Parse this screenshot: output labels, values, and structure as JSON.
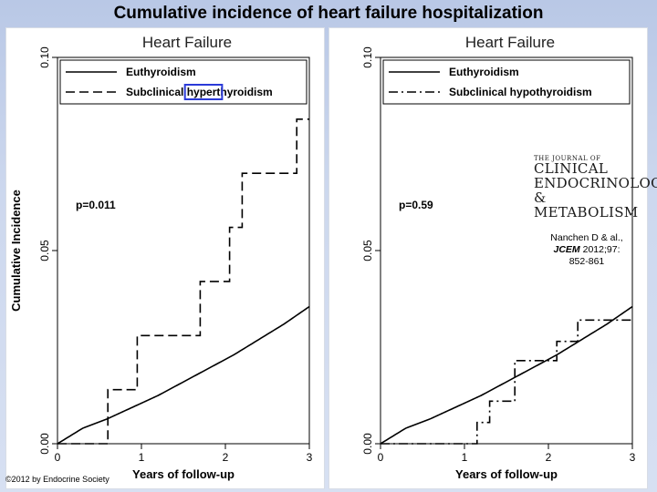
{
  "slide": {
    "title": "Cumulative incidence of heart failure hospitalization",
    "copyright": "©2012 by Endocrine Society"
  },
  "journal": {
    "line1": "THE JOURNAL OF",
    "line2": "CLINICAL",
    "line3": "ENDOCRINOLOGY",
    "line4": "& METABOLISM"
  },
  "citation": {
    "authors": "Nanchen D & al.,",
    "journal": "JCEM",
    "volume": "2012;97:",
    "pages": "852-861"
  },
  "chart_data": [
    {
      "type": "line",
      "title": "Heart Failure",
      "xlabel": "Years of follow-up",
      "ylabel": "Cumulative Incidence",
      "xlim": [
        0,
        3
      ],
      "ylim": [
        0,
        0.1
      ],
      "x_ticks": [
        0,
        1,
        2,
        3
      ],
      "x_tick_labels": [
        "0",
        "1",
        "2",
        "3"
      ],
      "y_ticks": [
        0,
        0.05,
        0.1
      ],
      "y_tick_labels": [
        "0.00",
        "0.05",
        "0.10"
      ],
      "p_value": "p=0.011",
      "legend_position": "top",
      "highlight": "hypert",
      "series": [
        {
          "name": "Euthyroidism",
          "style": "solid",
          "color": "#000000",
          "x": [
            0,
            0.3,
            0.6,
            0.9,
            1.2,
            1.5,
            1.8,
            2.1,
            2.4,
            2.7,
            3.0
          ],
          "y": [
            0,
            0.004,
            0.0065,
            0.0095,
            0.0125,
            0.016,
            0.0195,
            0.023,
            0.027,
            0.031,
            0.0355
          ]
        },
        {
          "name": "Subclinical hyperthyroidism",
          "name_parts": [
            "Subclinical ",
            "hypert",
            "hyroidism"
          ],
          "style": "dash",
          "color": "#000000",
          "step": true,
          "x": [
            0,
            0.6,
            0.95,
            1.7,
            2.05,
            2.2,
            2.85,
            3.0
          ],
          "y": [
            0,
            0.014,
            0.028,
            0.042,
            0.056,
            0.07,
            0.084,
            0.084
          ]
        }
      ]
    },
    {
      "type": "line",
      "title": "Heart Failure",
      "xlabel": "Years of follow-up",
      "ylabel": "",
      "xlim": [
        0,
        3
      ],
      "ylim": [
        0,
        0.1
      ],
      "x_ticks": [
        0,
        1,
        2,
        3
      ],
      "x_tick_labels": [
        "0",
        "1",
        "2",
        "3"
      ],
      "y_ticks": [
        0,
        0.05,
        0.1
      ],
      "y_tick_labels": [
        "0.00",
        "0.05",
        "0.10"
      ],
      "p_value": "p=0.59",
      "legend_position": "top",
      "series": [
        {
          "name": "Euthyroidism",
          "style": "solid",
          "color": "#000000",
          "x": [
            0,
            0.3,
            0.6,
            0.9,
            1.2,
            1.5,
            1.8,
            2.1,
            2.4,
            2.7,
            3.0
          ],
          "y": [
            0,
            0.004,
            0.0065,
            0.0095,
            0.0125,
            0.016,
            0.0195,
            0.023,
            0.027,
            0.031,
            0.0355
          ]
        },
        {
          "name": "Subclinical hypothyroidism",
          "style": "dashdot",
          "color": "#000000",
          "step": true,
          "x": [
            0,
            1.15,
            1.3,
            1.6,
            2.1,
            2.35,
            3.0
          ],
          "y": [
            0,
            0.0055,
            0.011,
            0.0215,
            0.0265,
            0.032,
            0.032
          ]
        }
      ]
    }
  ]
}
